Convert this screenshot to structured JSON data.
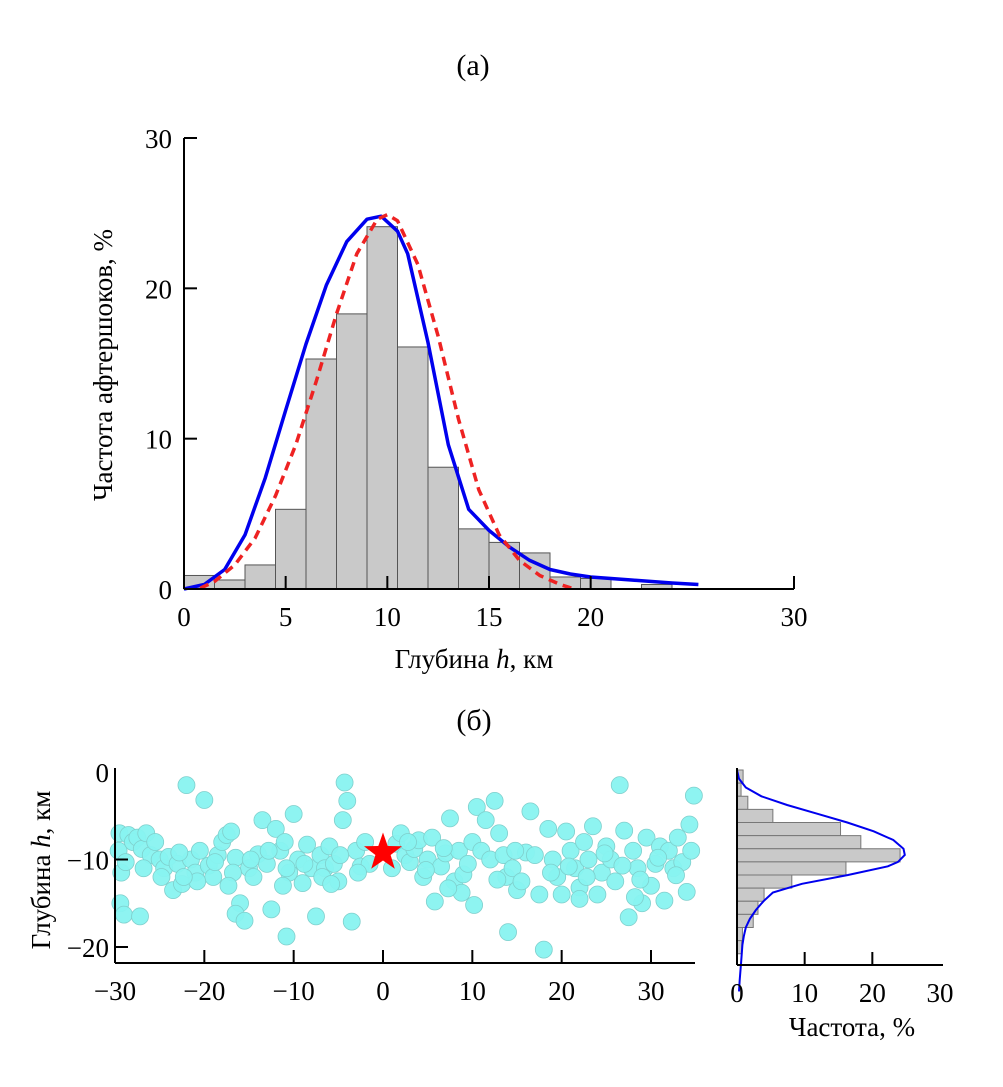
{
  "chart_data": [
    {
      "panel": "(а)",
      "type": "bar",
      "title": "(а)",
      "xlabel_prefix": "Глубина ",
      "xlabel_var": "h",
      "xlabel_suffix": ", км",
      "ylabel": "Частота афтершоков, %",
      "xlim": [
        0,
        30
      ],
      "ylim": [
        0,
        30
      ],
      "xticks": [
        0,
        5,
        10,
        15,
        20,
        30
      ],
      "yticks": [
        0,
        10,
        20,
        30
      ],
      "bin_width": 1.5,
      "bins": [
        {
          "x0": 0.0,
          "value": 0.9
        },
        {
          "x0": 1.5,
          "value": 0.6
        },
        {
          "x0": 3.0,
          "value": 1.6
        },
        {
          "x0": 4.5,
          "value": 5.3
        },
        {
          "x0": 6.0,
          "value": 15.3
        },
        {
          "x0": 7.5,
          "value": 18.3
        },
        {
          "x0": 9.0,
          "value": 24.1
        },
        {
          "x0": 10.5,
          "value": 16.1
        },
        {
          "x0": 12.0,
          "value": 8.1
        },
        {
          "x0": 13.5,
          "value": 4.0
        },
        {
          "x0": 15.0,
          "value": 3.1
        },
        {
          "x0": 16.5,
          "value": 2.4
        },
        {
          "x0": 18.0,
          "value": 0.8
        },
        {
          "x0": 19.5,
          "value": 0.7
        },
        {
          "x0": 21.0,
          "value": 0.0
        },
        {
          "x0": 22.5,
          "value": 0.3
        }
      ],
      "series": [
        {
          "name": "fit-solid",
          "style": "solid",
          "color": "#0000ee",
          "x": [
            0,
            1,
            2,
            3,
            4,
            5,
            6,
            7,
            8,
            9,
            9.7,
            10.5,
            11,
            12,
            13,
            14,
            15,
            16,
            17,
            18,
            19,
            20,
            22,
            24,
            25.3
          ],
          "y": [
            0,
            0.3,
            1.3,
            3.6,
            7.4,
            11.9,
            16.3,
            20.2,
            23.1,
            24.6,
            24.8,
            23.8,
            22.3,
            16.4,
            9.6,
            5.3,
            3.9,
            2.8,
            1.9,
            1.3,
            1.0,
            0.8,
            0.6,
            0.4,
            0.3
          ]
        },
        {
          "name": "fit-dashed",
          "style": "dashed",
          "color": "#ee2222",
          "x": [
            0.8,
            1.5,
            2.5,
            3.5,
            4.5,
            5.5,
            6.5,
            7.5,
            8.5,
            9.5,
            10,
            10.5,
            11.5,
            12.5,
            13.5,
            14.5,
            15.5,
            16.5,
            17.5,
            18.5,
            19.2
          ],
          "y": [
            0.05,
            0.5,
            1.6,
            3.4,
            6.2,
            9.6,
            13.8,
            18.3,
            22.3,
            24.6,
            24.9,
            24.5,
            21.6,
            16.8,
            11.3,
            6.6,
            3.6,
            1.9,
            0.9,
            0.3,
            0.0
          ]
        }
      ]
    },
    {
      "panel": "(б)",
      "type": "scatter",
      "title": "(б)",
      "ylabel_prefix": "Глубина ",
      "ylabel_var": "h",
      "ylabel_suffix": ", км",
      "xlabel": "",
      "xlim": [
        -30,
        35
      ],
      "ylim": [
        -21.5,
        0
      ],
      "xticks": [
        -30,
        -20,
        -10,
        0,
        10,
        20,
        30
      ],
      "yticks": [
        0,
        -10,
        -20
      ],
      "xtick_labels": [
        "−30",
        "−20",
        "−10",
        "0",
        "10",
        "20",
        "30"
      ],
      "ytick_labels": [
        "0",
        "−10",
        "−20"
      ],
      "point_color": "#88f3f0",
      "mainshock": {
        "x": 0,
        "y": -9.2,
        "marker": "star",
        "color": "#ff0000"
      },
      "points": [
        [
          -29.5,
          -7
        ],
        [
          -29.6,
          -9
        ],
        [
          -29.3,
          -11.5
        ],
        [
          -29.4,
          -15
        ],
        [
          -29,
          -16.3
        ],
        [
          -28.5,
          -7.2
        ],
        [
          -28,
          -8
        ],
        [
          -27.5,
          -7.5
        ],
        [
          -27,
          -8.8
        ],
        [
          -26.5,
          -7
        ],
        [
          -26,
          -9.5
        ],
        [
          -25.5,
          -8
        ],
        [
          -25,
          -10
        ],
        [
          -24.5,
          -11
        ],
        [
          -24,
          -9.7
        ],
        [
          -23.5,
          -13.5
        ],
        [
          -23,
          -10.5
        ],
        [
          -22.5,
          -12.8
        ],
        [
          -22,
          -1.5
        ],
        [
          -21.5,
          -10
        ],
        [
          -21,
          -11.5
        ],
        [
          -20.5,
          -9
        ],
        [
          -20,
          -3.2
        ],
        [
          -19.5,
          -10.7
        ],
        [
          -19,
          -12
        ],
        [
          -18.5,
          -9.5
        ],
        [
          -18,
          -8
        ],
        [
          -17.5,
          -7.2
        ],
        [
          -17,
          -6.8
        ],
        [
          -16.5,
          -9.8
        ],
        [
          -16,
          -15
        ],
        [
          -16.5,
          -16.2
        ],
        [
          -15.5,
          -17
        ],
        [
          -15,
          -11
        ],
        [
          -14.5,
          -12
        ],
        [
          -14,
          -9.4
        ],
        [
          -13.5,
          -5.5
        ],
        [
          -13,
          -10.5
        ],
        [
          -12.5,
          -15.7
        ],
        [
          -12,
          -6.5
        ],
        [
          -11.5,
          -9
        ],
        [
          -11,
          -8
        ],
        [
          -10.8,
          -18.8
        ],
        [
          -10.5,
          -11.5
        ],
        [
          -10,
          -4.8
        ],
        [
          -9.5,
          -10
        ],
        [
          -9,
          -12.7
        ],
        [
          -8.5,
          -8.3
        ],
        [
          -8,
          -11
        ],
        [
          -7.5,
          -16.5
        ],
        [
          -7,
          -9.5
        ],
        [
          -6.5,
          -11
        ],
        [
          -6,
          -8.5
        ],
        [
          -5.5,
          -10.5
        ],
        [
          -5,
          -12.5
        ],
        [
          -4.5,
          -5.5
        ],
        [
          -4.3,
          -1.2
        ],
        [
          -4,
          -3.3
        ],
        [
          -3.5,
          -17.1
        ],
        [
          -3,
          -9
        ],
        [
          -2.5,
          -10.8
        ],
        [
          -2,
          -8
        ],
        [
          -1.5,
          -10.5
        ],
        [
          1,
          -11
        ],
        [
          1.5,
          -8.2
        ],
        [
          2,
          -7
        ],
        [
          2.5,
          -9.5
        ],
        [
          3,
          -10.3
        ],
        [
          3.5,
          -8.8
        ],
        [
          4,
          -7.8
        ],
        [
          4.5,
          -12
        ],
        [
          5,
          -10
        ],
        [
          5.5,
          -7.5
        ],
        [
          5.8,
          -14.8
        ],
        [
          6.5,
          -10.8
        ],
        [
          7,
          -9.3
        ],
        [
          7.5,
          -5.3
        ],
        [
          8,
          -12.5
        ],
        [
          8.5,
          -9
        ],
        [
          9,
          -11.7
        ],
        [
          9.5,
          -10.5
        ],
        [
          10,
          -8
        ],
        [
          10.2,
          -15.2
        ],
        [
          10.5,
          -4
        ],
        [
          11,
          -9
        ],
        [
          11.5,
          -5.5
        ],
        [
          12,
          -10
        ],
        [
          12.5,
          -3.3
        ],
        [
          13,
          -7
        ],
        [
          13.5,
          -9.5
        ],
        [
          13.8,
          -12
        ],
        [
          14,
          -18.3
        ],
        [
          14.5,
          -11
        ],
        [
          15,
          -13.5
        ],
        [
          16,
          -9.2
        ],
        [
          16.5,
          -4.5
        ],
        [
          17,
          -9.5
        ],
        [
          17.5,
          -14
        ],
        [
          18,
          -20.3
        ],
        [
          18.5,
          -6.5
        ],
        [
          19,
          -10
        ],
        [
          19.5,
          -12
        ],
        [
          20,
          -14
        ],
        [
          20.5,
          -6.8
        ],
        [
          21,
          -9
        ],
        [
          21.5,
          -11
        ],
        [
          22,
          -13.2
        ],
        [
          22.5,
          -8
        ],
        [
          23,
          -10
        ],
        [
          23.5,
          -6.2
        ],
        [
          24,
          -14
        ],
        [
          24.5,
          -11.5
        ],
        [
          25,
          -8.5
        ],
        [
          25.5,
          -10
        ],
        [
          26,
          -12.5
        ],
        [
          26.5,
          -1.5
        ],
        [
          27,
          -6.7
        ],
        [
          27.5,
          -16.6
        ],
        [
          28,
          -9
        ],
        [
          28.5,
          -11
        ],
        [
          29,
          -15
        ],
        [
          29.5,
          -7.5
        ],
        [
          30,
          -13
        ],
        [
          30.5,
          -10.5
        ],
        [
          31,
          -8.5
        ],
        [
          31.5,
          -14.7
        ],
        [
          32,
          -9
        ],
        [
          32.5,
          -11
        ],
        [
          33,
          -7.5
        ],
        [
          33.5,
          -10.3
        ],
        [
          34,
          -13.7
        ],
        [
          34.3,
          -6
        ],
        [
          34.5,
          -9
        ],
        [
          34.8,
          -2.7
        ],
        [
          -28.8,
          -10.3
        ],
        [
          -26.8,
          -11
        ],
        [
          -24.8,
          -12
        ],
        [
          -22.8,
          -9.2
        ],
        [
          -20.8,
          -12.5
        ],
        [
          -18.8,
          -10.3
        ],
        [
          -16.8,
          -11.5
        ],
        [
          -14.8,
          -10
        ],
        [
          -12.8,
          -9
        ],
        [
          -10.8,
          -11
        ],
        [
          -8.8,
          -10.5
        ],
        [
          -6.8,
          -12
        ],
        [
          -4.8,
          -9.5
        ],
        [
          -2.8,
          -11.5
        ],
        [
          2.8,
          -8
        ],
        [
          4.8,
          -11.2
        ],
        [
          6.8,
          -8.7
        ],
        [
          8.8,
          -13.8
        ],
        [
          12.8,
          -12.3
        ],
        [
          14.8,
          -9
        ],
        [
          18.8,
          -11.5
        ],
        [
          20.8,
          -10.8
        ],
        [
          22.8,
          -12
        ],
        [
          24.8,
          -9.3
        ],
        [
          26.8,
          -10.7
        ],
        [
          28.8,
          -12.3
        ],
        [
          30.8,
          -9.8
        ],
        [
          32.8,
          -11.8
        ],
        [
          -27.2,
          -16.5
        ],
        [
          -22.3,
          -12
        ],
        [
          -17.3,
          -13
        ],
        [
          -11.2,
          -13
        ],
        [
          -5.8,
          -12.8
        ],
        [
          7.3,
          -13.3
        ],
        [
          15.5,
          -12.5
        ],
        [
          22,
          -14.5
        ],
        [
          28.2,
          -14.3
        ]
      ]
    },
    {
      "panel": "(б)-marginal",
      "type": "bar",
      "orientation": "horizontal",
      "xlabel": "Частота, %",
      "xlim": [
        0,
        30
      ],
      "xticks": [
        0,
        10,
        20,
        30
      ],
      "bin_width": 1.5,
      "bins": [
        {
          "depth0": 0.0,
          "value": 0.9
        },
        {
          "depth0": 1.5,
          "value": 0.6
        },
        {
          "depth0": 3.0,
          "value": 1.6
        },
        {
          "depth0": 4.5,
          "value": 5.3
        },
        {
          "depth0": 6.0,
          "value": 15.3
        },
        {
          "depth0": 7.5,
          "value": 18.3
        },
        {
          "depth0": 9.0,
          "value": 24.1
        },
        {
          "depth0": 10.5,
          "value": 16.1
        },
        {
          "depth0": 12.0,
          "value": 8.1
        },
        {
          "depth0": 13.5,
          "value": 4.0
        },
        {
          "depth0": 15.0,
          "value": 3.1
        },
        {
          "depth0": 16.5,
          "value": 2.4
        },
        {
          "depth0": 18.0,
          "value": 0.8
        },
        {
          "depth0": 19.5,
          "value": 0.7
        }
      ],
      "curve_color": "#0000ee"
    }
  ]
}
